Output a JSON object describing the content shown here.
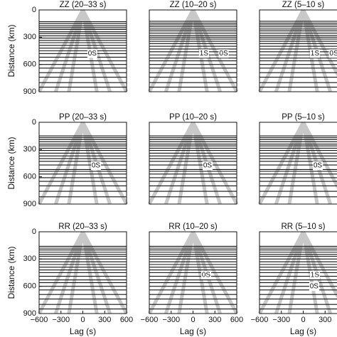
{
  "chart_data": [
    {
      "type": "record-section",
      "title": "ZZ (20–33 s)",
      "ylabel": "Distance (km)",
      "xlim": [
        -600,
        600
      ],
      "ylim": [
        0,
        900
      ],
      "yticks": [
        0,
        300,
        600,
        900
      ],
      "traces": [
        130,
        150,
        175,
        195,
        215,
        240,
        260,
        285,
        310,
        335,
        360,
        390,
        420,
        450,
        480,
        520,
        560,
        600,
        640,
        690,
        740,
        800,
        850
      ],
      "annotations": [
        {
          "text": "0S",
          "lag": 130,
          "distance": 480
        }
      ]
    },
    {
      "type": "record-section",
      "title": "ZZ (10–20 s)",
      "xlim": [
        -600,
        600
      ],
      "ylim": [
        0,
        900
      ],
      "traces": [
        125,
        145,
        165,
        185,
        210,
        230,
        255,
        280,
        300,
        320,
        345,
        370,
        400,
        430,
        460,
        495,
        530,
        560,
        600,
        640,
        690,
        740,
        800,
        850
      ],
      "annotations": [
        {
          "text": "1S",
          "lag": 150,
          "distance": 480
        },
        {
          "text": "0S",
          "lag": 420,
          "distance": 480
        }
      ]
    },
    {
      "type": "record-section",
      "title": "ZZ (5–10 s)",
      "xlim": [
        -600,
        600
      ],
      "ylim": [
        0,
        900
      ],
      "traces": [
        125,
        145,
        165,
        185,
        210,
        230,
        255,
        280,
        300,
        320,
        345,
        370,
        400,
        430,
        460,
        495,
        530,
        560,
        600,
        640,
        690,
        740,
        800,
        850
      ],
      "annotations": [
        {
          "text": "1S",
          "lag": 160,
          "distance": 480
        },
        {
          "text": "0S",
          "lag": 420,
          "distance": 480
        }
      ]
    },
    {
      "type": "record-section",
      "title": "PP (20–33 s)",
      "ylabel": "Distance (km)",
      "xlim": [
        -600,
        600
      ],
      "ylim": [
        0,
        900
      ],
      "yticks": [
        0,
        300,
        600,
        900
      ],
      "traces": [
        150,
        170,
        190,
        215,
        240,
        260,
        285,
        310,
        340,
        370,
        400,
        430,
        470,
        520,
        540,
        570,
        610,
        650,
        700,
        760,
        820
      ],
      "annotations": [
        {
          "text": "0S",
          "lag": 180,
          "distance": 477
        }
      ]
    },
    {
      "type": "record-section",
      "title": "PP (10–20 s)",
      "xlim": [
        -600,
        600
      ],
      "ylim": [
        0,
        900
      ],
      "traces": [
        150,
        170,
        190,
        215,
        240,
        260,
        285,
        310,
        340,
        370,
        400,
        430,
        470,
        520,
        540,
        570,
        610,
        650,
        700,
        760,
        820
      ],
      "annotations": [
        {
          "text": "0S",
          "lag": 200,
          "distance": 477
        }
      ]
    },
    {
      "type": "record-section",
      "title": "PP (5–10 s)",
      "xlim": [
        -600,
        600
      ],
      "ylim": [
        0,
        900
      ],
      "traces": [
        150,
        170,
        190,
        215,
        240,
        260,
        285,
        310,
        340,
        370,
        400,
        430,
        470,
        520,
        540,
        570,
        610,
        650,
        700,
        760,
        820
      ],
      "annotations": [
        {
          "text": "0S",
          "lag": 200,
          "distance": 477
        }
      ]
    },
    {
      "type": "record-section",
      "title": "RR (20–33 s)",
      "ylabel": "Distance (km)",
      "xlabel": "Lag (s)",
      "xlim": [
        -600,
        600
      ],
      "ylim": [
        0,
        900
      ],
      "yticks": [
        0,
        300,
        600,
        900
      ],
      "xticks": [
        {
          "value": -600,
          "label": "−600"
        },
        {
          "value": -300,
          "label": "−300"
        },
        0,
        300,
        600
      ],
      "traces": [
        160,
        180,
        200,
        225,
        250,
        270,
        300,
        330,
        360,
        390,
        420,
        450,
        490,
        530,
        560,
        600,
        640,
        690,
        740,
        800,
        850
      ],
      "annotations": []
    },
    {
      "type": "record-section",
      "title": "RR (10–20 s)",
      "xlabel": "Lag (s)",
      "xlim": [
        -600,
        600
      ],
      "ylim": [
        0,
        900
      ],
      "xticks": [
        {
          "value": -600,
          "label": "−600"
        },
        {
          "value": -300,
          "label": "−300"
        },
        0,
        300,
        600
      ],
      "traces": [
        160,
        180,
        200,
        225,
        250,
        270,
        300,
        330,
        360,
        390,
        420,
        450,
        490,
        530,
        560,
        600,
        640,
        690,
        740,
        800,
        850
      ],
      "annotations": [
        {
          "text": "0S",
          "lag": 180,
          "distance": 477
        }
      ]
    },
    {
      "type": "record-section",
      "title": "RR (5–10 s)",
      "xlabel": "Lag (s)",
      "xlim": [
        -600,
        600
      ],
      "ylim": [
        0,
        900
      ],
      "xticks": [
        {
          "value": -600,
          "label": "−600"
        },
        {
          "value": -300,
          "label": "−300"
        },
        0,
        300
      ],
      "traces": [
        160,
        180,
        200,
        225,
        250,
        270,
        300,
        330,
        360,
        390,
        420,
        450,
        490,
        530,
        560,
        600,
        640,
        690,
        740,
        800,
        850
      ],
      "annotations": [
        {
          "text": "1S",
          "lag": 160,
          "distance": 477
        },
        {
          "text": "0S",
          "lag": 150,
          "distance": 603
        }
      ]
    }
  ]
}
